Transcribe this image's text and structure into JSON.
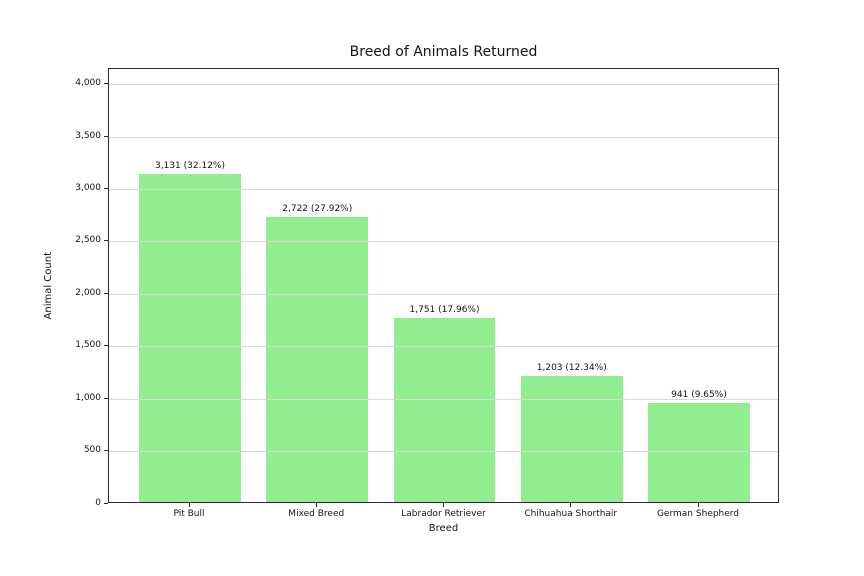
{
  "chart_data": {
    "type": "bar",
    "title": "Breed of Animals Returned",
    "xlabel": "Breed",
    "ylabel": "Animal Count",
    "categories": [
      "Pit Bull",
      "Mixed Breed",
      "Labrador Retriever",
      "Chihuahua Shorthair",
      "German Shepherd"
    ],
    "values": [
      3131,
      2722,
      1751,
      1203,
      941
    ],
    "bar_labels": [
      "3,131 (32.12%)",
      "2,722 (27.92%)",
      "1,751 (17.96%)",
      "1,203 (12.34%)",
      "941 (9.65%)"
    ],
    "ylim": [
      0,
      4150
    ],
    "ytick_values": [
      0,
      500,
      1000,
      1500,
      2000,
      2500,
      3000,
      3500,
      4000
    ],
    "ytick_labels": [
      "0",
      "500",
      "1,000",
      "1,500",
      "2,000",
      "2,500",
      "3,000",
      "3,500",
      "4,000"
    ],
    "grid": "horizontal",
    "legend_position": "none",
    "bar_color": "#90EE90",
    "gridline_color": "#d9d9d9",
    "bar_width_fraction": 0.8
  }
}
